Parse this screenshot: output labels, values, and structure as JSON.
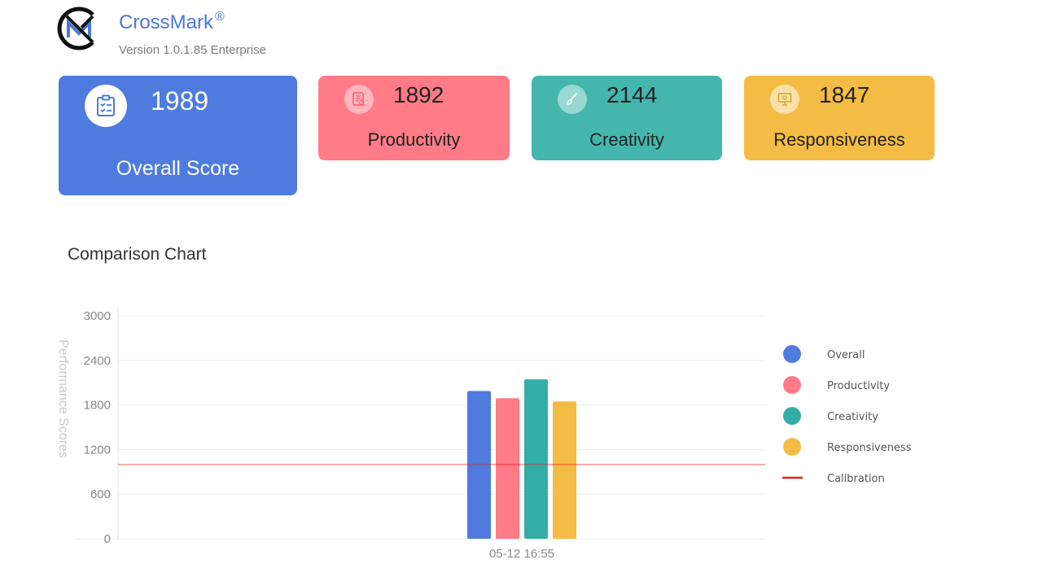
{
  "app": {
    "name": "CrossMark",
    "registered_mark": "®",
    "version": "Version 1.0.1.85 Enterprise"
  },
  "cards": {
    "overall": {
      "score": "1989",
      "label": "Overall Score",
      "color": "#4f7bde",
      "icon": "clipboard-checklist-icon"
    },
    "productivity": {
      "score": "1892",
      "label": "Productivity",
      "color": "#ff7b87",
      "icon": "document-search-icon"
    },
    "creativity": {
      "score": "2144",
      "label": "Creativity",
      "color": "#45b6ae",
      "icon": "paintbrush-icon"
    },
    "responsiveness": {
      "score": "1847",
      "label": "Responsiveness",
      "color": "#f4bc44",
      "icon": "monitor-icon"
    }
  },
  "section": {
    "title": "Comparison Chart"
  },
  "chart_data": {
    "type": "bar",
    "categories": [
      "05-12 16:55"
    ],
    "series": [
      {
        "name": "Overall",
        "values": [
          1989
        ],
        "color": "#4f7bde"
      },
      {
        "name": "Productivity",
        "values": [
          1892
        ],
        "color": "#ff7b87"
      },
      {
        "name": "Creativity",
        "values": [
          2144
        ],
        "color": "#33aea6"
      },
      {
        "name": "Responsiveness",
        "values": [
          1847
        ],
        "color": "#f4bc44"
      }
    ],
    "reference_lines": [
      {
        "name": "Calibration",
        "value": 1000,
        "color": "#e02020"
      }
    ],
    "ylabel": "Performance Scores",
    "xlabel": "",
    "ylim": [
      0,
      3000
    ],
    "yticks": [
      0,
      600,
      1200,
      1800,
      2400,
      3000
    ],
    "grid": true,
    "legend": "right"
  }
}
